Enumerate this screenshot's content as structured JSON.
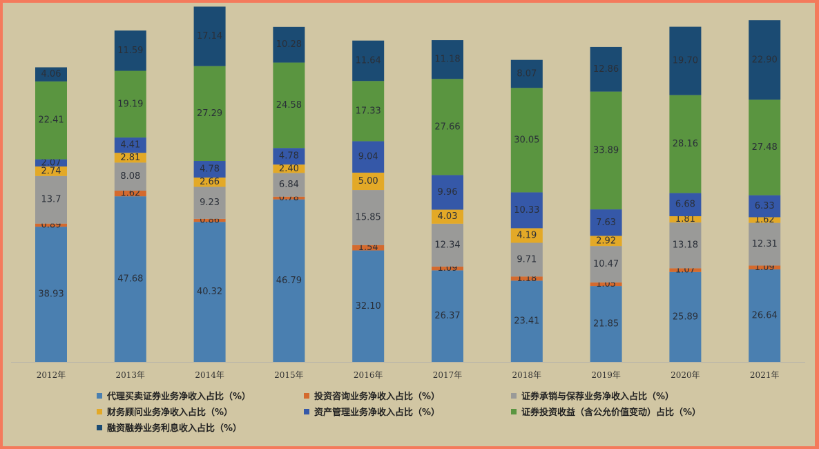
{
  "chart_data": {
    "type": "bar",
    "stacked": true,
    "categories": [
      "2012年",
      "2013年",
      "2014年",
      "2015年",
      "2016年",
      "2017年",
      "2018年",
      "2019年",
      "2020年",
      "2021年"
    ],
    "ylim": [
      0,
      100
    ],
    "grid": false,
    "legend_position": "bottom",
    "series": [
      {
        "name": "代理买卖证券业务净收入占比（%）",
        "color": "#4a7fb0",
        "values": [
          38.93,
          47.68,
          40.32,
          46.79,
          32.1,
          26.37,
          23.41,
          21.85,
          25.89,
          26.64
        ],
        "labels": [
          "38.93",
          "47.68",
          "40.32",
          "46.79",
          "32.10",
          "26.37",
          "23.41",
          "21.85",
          "25.89",
          "26.64"
        ]
      },
      {
        "name": "投资咨询业务净收入占比（%）",
        "color": "#d46a2e",
        "values": [
          0.89,
          1.62,
          0.86,
          0.78,
          1.54,
          1.09,
          1.18,
          1.05,
          1.07,
          1.09
        ],
        "labels": [
          "0.89",
          "1.62",
          "0.86",
          "0.78",
          "1.54",
          "1.09",
          "1.18",
          "1.05",
          "1.07",
          "1.09"
        ]
      },
      {
        "name": "证券承销与保荐业务净收入占比（%）",
        "color": "#9a9a98",
        "values": [
          13.7,
          8.08,
          9.23,
          6.84,
          15.85,
          12.34,
          9.71,
          10.47,
          13.18,
          12.31
        ],
        "labels": [
          "13.7",
          "8.08",
          "9.23",
          "6.84",
          "15.85",
          "12.34",
          "9.71",
          "10.47",
          "13.18",
          "12.31"
        ]
      },
      {
        "name": "财务顾问业务净收入占比（%）",
        "color": "#e3a927",
        "values": [
          2.74,
          2.81,
          2.66,
          2.4,
          5.0,
          4.03,
          4.19,
          2.92,
          1.81,
          1.62
        ],
        "labels": [
          "2.74",
          "2.81",
          "2.66",
          "2.40",
          "5.00",
          "4.03",
          "4.19",
          "2.92",
          "1.81",
          "1.62"
        ]
      },
      {
        "name": "资产管理业务净收入占比（%）",
        "color": "#3558a8",
        "values": [
          2.07,
          4.41,
          4.78,
          4.78,
          9.04,
          9.96,
          10.33,
          7.63,
          6.68,
          6.33
        ],
        "labels": [
          "2.07",
          "4.41",
          "4.78",
          "4.78",
          "9.04",
          "9.96",
          "10.33",
          "7.63",
          "6.68",
          "6.33"
        ]
      },
      {
        "name": "证券投资收益（含公允价值变动）占比（%）",
        "color": "#5a9540",
        "values": [
          22.41,
          19.19,
          27.29,
          24.58,
          17.33,
          27.66,
          30.05,
          33.89,
          28.16,
          27.48
        ],
        "labels": [
          "22.41",
          "19.19",
          "27.29",
          "24.58",
          "17.33",
          "27.66",
          "30.05",
          "33.89",
          "28.16",
          "27.48"
        ]
      },
      {
        "name": "融资融券业务利息收入占比（%）",
        "color": "#1b4b73",
        "values": [
          4.06,
          11.59,
          17.14,
          10.28,
          11.64,
          11.18,
          8.07,
          12.86,
          19.7,
          22.9
        ],
        "labels": [
          "4.06",
          "11.59",
          "17.14",
          "10.28",
          "11.64",
          "11.18",
          "8.07",
          "12.86",
          "19.70",
          "22.90"
        ]
      }
    ]
  }
}
